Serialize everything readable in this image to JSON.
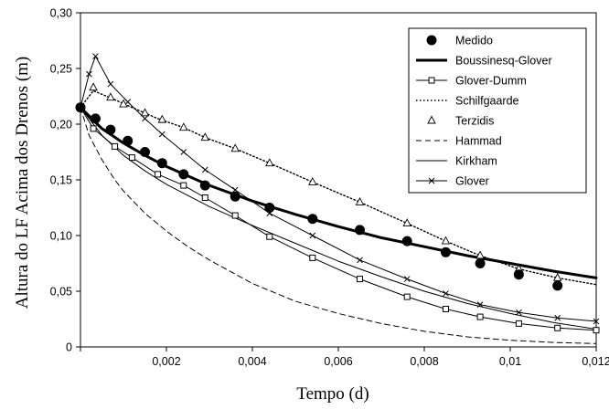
{
  "chart_data": {
    "type": "line",
    "title": "",
    "xlabel": "Tempo (d)",
    "ylabel": "Altura do LF Acima dos Drenos (m)",
    "xlim": [
      0,
      0.012
    ],
    "ylim": [
      0,
      0.3
    ],
    "x_ticks": [
      0,
      0.002,
      0.004,
      0.006,
      0.008,
      0.01,
      0.012
    ],
    "x_tick_labels": [
      "",
      "0,002",
      "0,004",
      "0,006",
      "0,008",
      "0,01",
      "0,012"
    ],
    "y_ticks": [
      0,
      0.05,
      0.1,
      0.15,
      0.2,
      0.25,
      0.3
    ],
    "y_tick_labels": [
      "0",
      "0,05",
      "0,10",
      "0,15",
      "0,20",
      "0,25",
      "0,30"
    ],
    "grid": false,
    "legend_position": "top-right",
    "series": [
      {
        "name": "Medido",
        "style": "marker",
        "marker": "filled-circle",
        "x": [
          0,
          0.00035,
          0.0007,
          0.0011,
          0.0015,
          0.0019,
          0.0024,
          0.0029,
          0.0036,
          0.0044,
          0.0054,
          0.0065,
          0.0076,
          0.0085,
          0.0093,
          0.0102,
          0.0111
        ],
        "y": [
          0.215,
          0.205,
          0.195,
          0.185,
          0.175,
          0.165,
          0.155,
          0.145,
          0.135,
          0.125,
          0.115,
          0.105,
          0.095,
          0.085,
          0.075,
          0.065,
          0.055
        ]
      },
      {
        "name": "Boussinesq-Glover",
        "style": "line",
        "line": "thick",
        "x": [
          0,
          0.0005,
          0.001,
          0.0015,
          0.002,
          0.003,
          0.004,
          0.005,
          0.006,
          0.007,
          0.008,
          0.009,
          0.01,
          0.011,
          0.012
        ],
        "y": [
          0.215,
          0.196,
          0.183,
          0.172,
          0.162,
          0.145,
          0.131,
          0.119,
          0.108,
          0.098,
          0.09,
          0.082,
          0.075,
          0.068,
          0.062
        ]
      },
      {
        "name": "Glover-Dumm",
        "style": "line",
        "line": "thin",
        "marker": "open-square",
        "x": [
          0,
          0.0003,
          0.0008,
          0.0012,
          0.0018,
          0.0024,
          0.0029,
          0.0036,
          0.0044,
          0.0054,
          0.0065,
          0.0076,
          0.0085,
          0.0093,
          0.0102,
          0.0111,
          0.012
        ],
        "y": [
          0.215,
          0.196,
          0.18,
          0.17,
          0.155,
          0.145,
          0.134,
          0.118,
          0.099,
          0.08,
          0.061,
          0.045,
          0.034,
          0.027,
          0.021,
          0.017,
          0.015
        ]
      },
      {
        "name": "Schilfgaarde",
        "style": "line",
        "line": "dotted",
        "x": [
          0,
          0.0003,
          0.0008,
          0.0012,
          0.0018,
          0.0024,
          0.0029,
          0.0036,
          0.0044,
          0.0054,
          0.0065,
          0.0076,
          0.0085,
          0.0093,
          0.0102,
          0.0111,
          0.012
        ],
        "y": [
          0.215,
          0.23,
          0.222,
          0.215,
          0.205,
          0.197,
          0.188,
          0.178,
          0.165,
          0.148,
          0.13,
          0.111,
          0.095,
          0.082,
          0.07,
          0.062,
          0.056
        ]
      },
      {
        "name": "Terzidis",
        "style": "marker",
        "marker": "open-triangle",
        "x": [
          0.0003,
          0.0007,
          0.001,
          0.0015,
          0.0019,
          0.0024,
          0.0029,
          0.0036,
          0.0044,
          0.0054,
          0.0065,
          0.0076,
          0.0085,
          0.0093,
          0.0102,
          0.0111
        ],
        "y": [
          0.233,
          0.224,
          0.218,
          0.21,
          0.204,
          0.197,
          0.188,
          0.178,
          0.165,
          0.148,
          0.13,
          0.111,
          0.095,
          0.082,
          0.07,
          0.062
        ]
      },
      {
        "name": "Hammad",
        "style": "line",
        "line": "dashed",
        "x": [
          0,
          0.0002,
          0.0005,
          0.0008,
          0.001,
          0.0015,
          0.002,
          0.0025,
          0.003,
          0.004,
          0.005,
          0.006,
          0.007,
          0.008,
          0.009,
          0.01,
          0.011,
          0.012
        ],
        "y": [
          0.215,
          0.19,
          0.168,
          0.15,
          0.14,
          0.12,
          0.104,
          0.09,
          0.078,
          0.057,
          0.041,
          0.03,
          0.021,
          0.014,
          0.009,
          0.006,
          0.004,
          0.003
        ]
      },
      {
        "name": "Kirkham",
        "style": "line",
        "line": "thin",
        "x": [
          0,
          0.0005,
          0.001,
          0.0015,
          0.002,
          0.003,
          0.004,
          0.005,
          0.006,
          0.007,
          0.008,
          0.009,
          0.01,
          0.011,
          0.012
        ],
        "y": [
          0.215,
          0.19,
          0.172,
          0.158,
          0.146,
          0.126,
          0.109,
          0.093,
          0.077,
          0.063,
          0.05,
          0.039,
          0.03,
          0.022,
          0.016
        ]
      },
      {
        "name": "Glover",
        "style": "line",
        "line": "thin",
        "marker": "x",
        "x": [
          0,
          0.0002,
          0.00035,
          0.0007,
          0.0011,
          0.0015,
          0.0019,
          0.0024,
          0.0029,
          0.0036,
          0.0044,
          0.0054,
          0.0065,
          0.0076,
          0.0085,
          0.0093,
          0.0102,
          0.0111,
          0.012
        ],
        "y": [
          0.215,
          0.245,
          0.261,
          0.236,
          0.22,
          0.205,
          0.191,
          0.175,
          0.159,
          0.141,
          0.12,
          0.1,
          0.078,
          0.061,
          0.048,
          0.038,
          0.031,
          0.026,
          0.023
        ]
      }
    ]
  }
}
